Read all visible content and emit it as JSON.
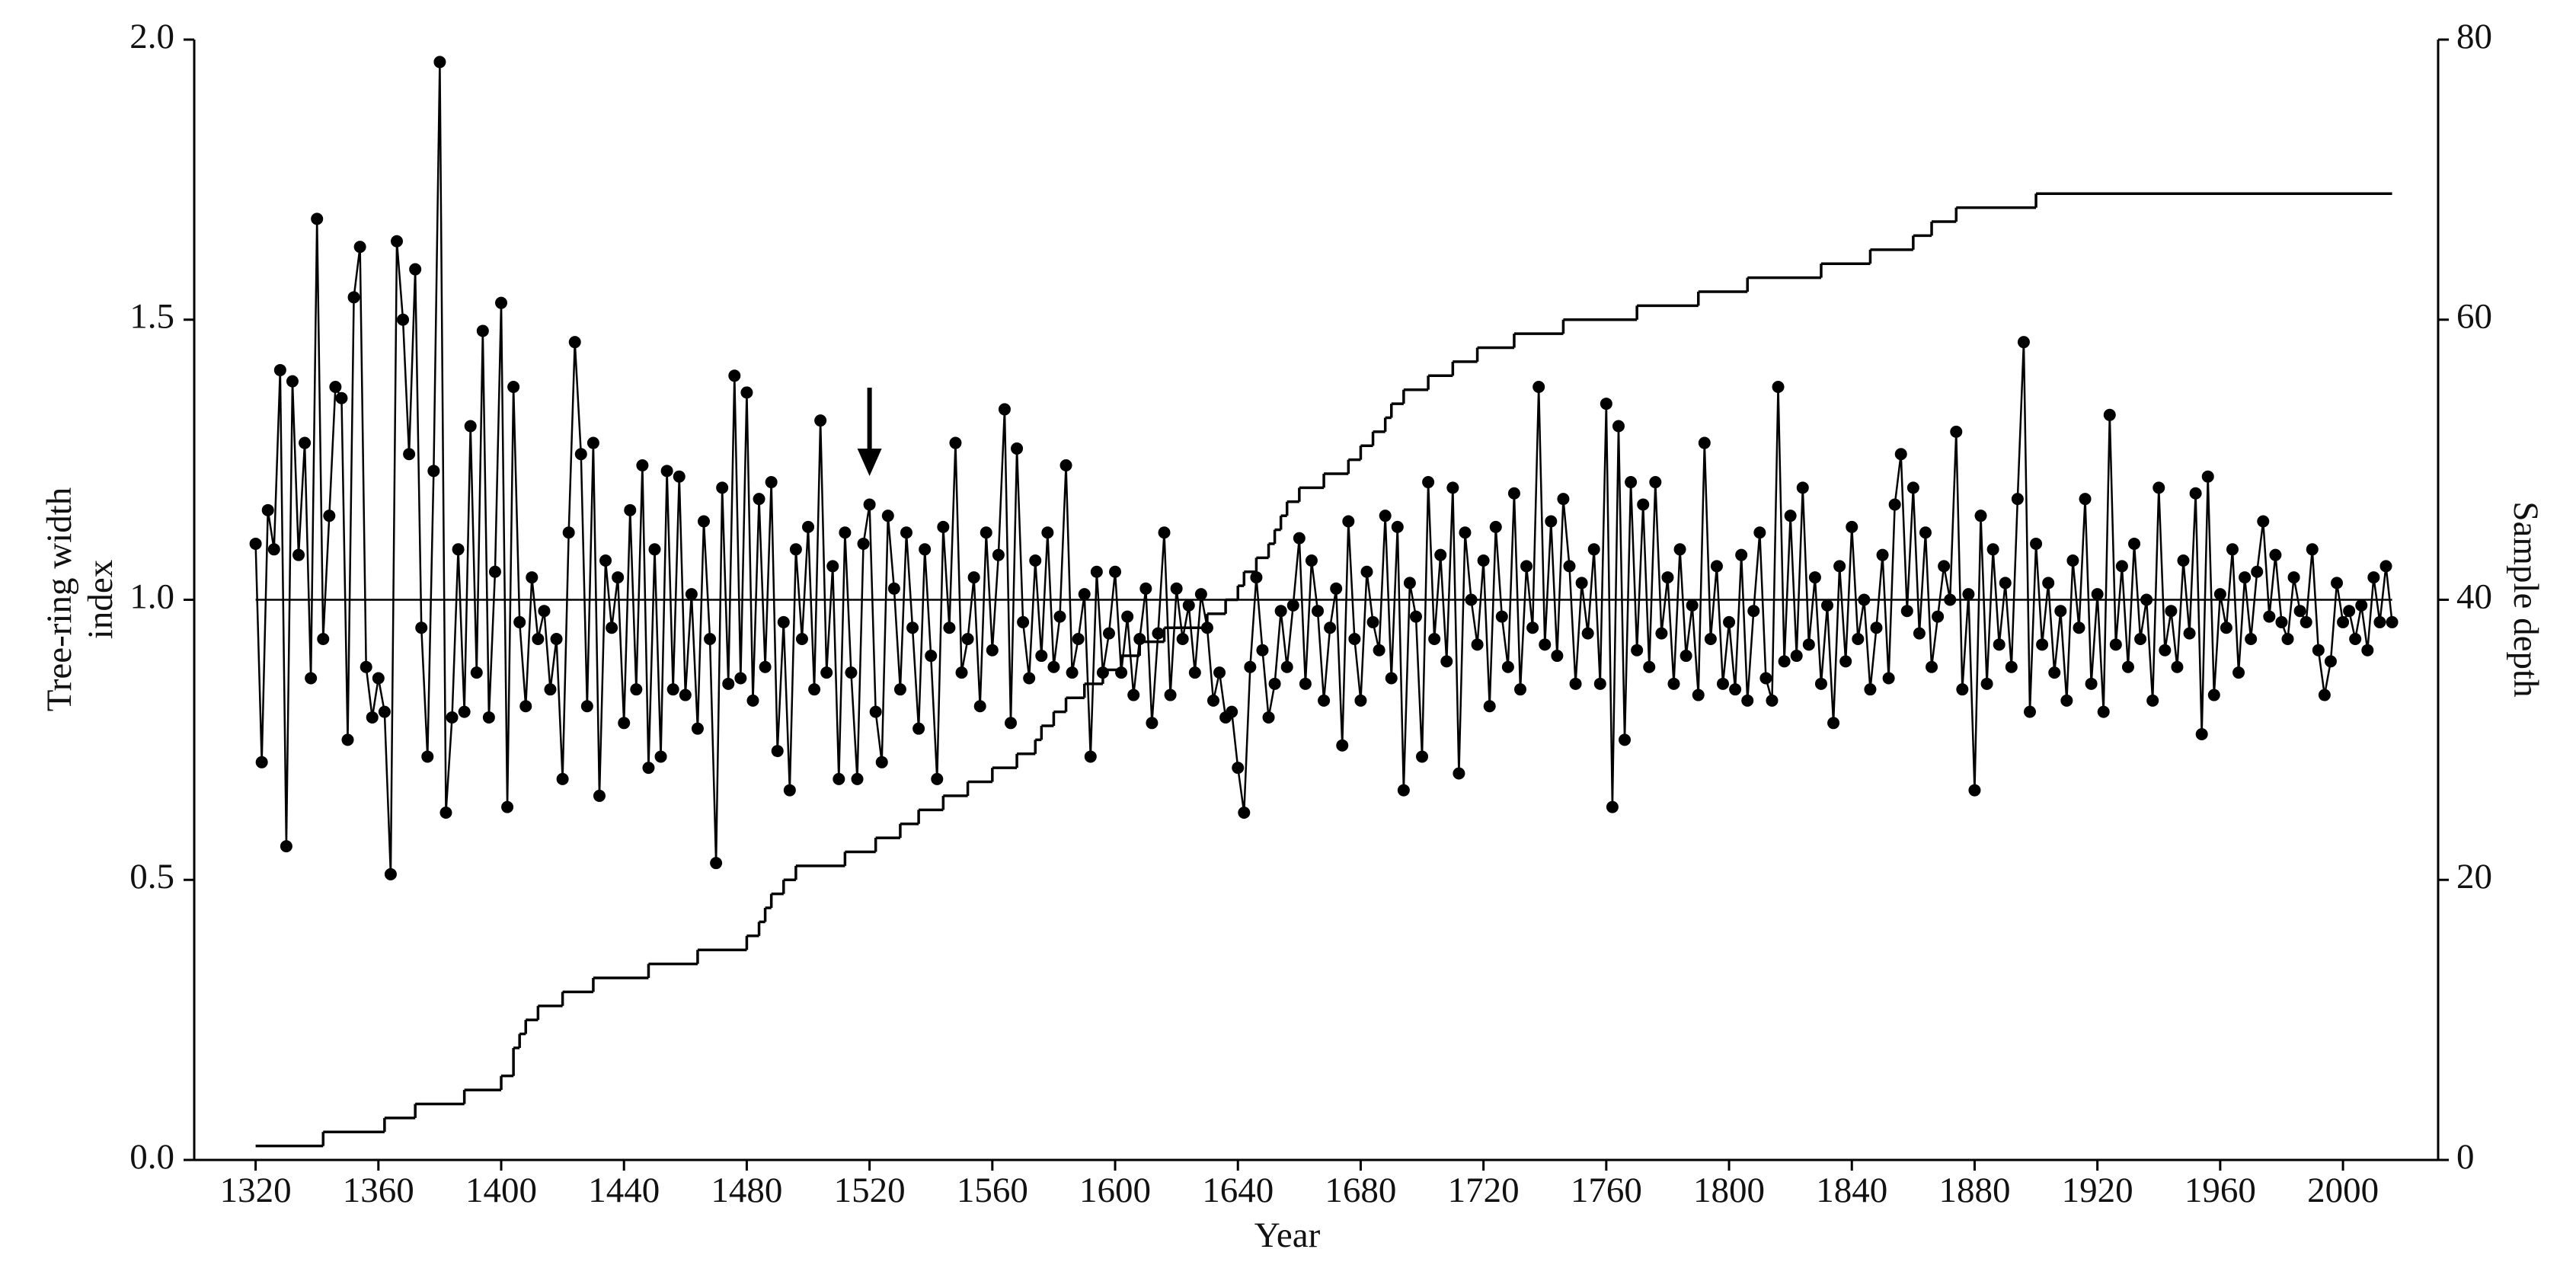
{
  "chart_data": {
    "type": "line",
    "xlabel": "Year",
    "ylabel": [
      "Tree-ring width",
      "index"
    ],
    "y2label": "Sample depth",
    "xlim": [
      1300,
      2031
    ],
    "xticks": [
      1320,
      1360,
      1400,
      1440,
      1480,
      1520,
      1560,
      1600,
      1640,
      1680,
      1720,
      1760,
      1800,
      1840,
      1880,
      1920,
      1960,
      2000
    ],
    "ylim": [
      0,
      2
    ],
    "yticks": [
      {
        "value": 0,
        "label": "0.0"
      },
      0.5,
      {
        "value": 1,
        "label": "1.0"
      },
      1.5,
      {
        "value": 2,
        "label": "2.0"
      }
    ],
    "y2lim": [
      0,
      80
    ],
    "y2ticks": [
      0,
      20,
      40,
      60,
      80
    ],
    "hline": 1,
    "arrows": [
      {
        "x": 1520
      }
    ],
    "series": [
      {
        "name": "Tree-ring width index",
        "color": "#000000",
        "marker": "circle",
        "x": [
          1320,
          1322,
          1324,
          1326,
          1328,
          1330,
          1332,
          1334,
          1336,
          1338,
          1340,
          1342,
          1344,
          1346,
          1348,
          1350,
          1352,
          1354,
          1356,
          1358,
          1360,
          1362,
          1364,
          1366,
          1368,
          1370,
          1372,
          1374,
          1376,
          1378,
          1380,
          1382,
          1384,
          1386,
          1388,
          1390,
          1392,
          1394,
          1396,
          1398,
          1400,
          1402,
          1404,
          1406,
          1408,
          1410,
          1412,
          1414,
          1416,
          1418,
          1420,
          1422,
          1424,
          1426,
          1428,
          1430,
          1432,
          1434,
          1436,
          1438,
          1440,
          1442,
          1444,
          1446,
          1448,
          1450,
          1452,
          1454,
          1456,
          1458,
          1460,
          1462,
          1464,
          1466,
          1468,
          1470,
          1472,
          1474,
          1476,
          1478,
          1480,
          1482,
          1484,
          1486,
          1488,
          1490,
          1492,
          1494,
          1496,
          1498,
          1500,
          1502,
          1504,
          1506,
          1508,
          1510,
          1512,
          1514,
          1516,
          1518,
          1520,
          1522,
          1524,
          1526,
          1528,
          1530,
          1532,
          1534,
          1536,
          1538,
          1540,
          1542,
          1544,
          1546,
          1548,
          1550,
          1552,
          1554,
          1556,
          1558,
          1560,
          1562,
          1564,
          1566,
          1568,
          1570,
          1572,
          1574,
          1576,
          1578,
          1580,
          1582,
          1584,
          1586,
          1588,
          1590,
          1592,
          1594,
          1596,
          1598,
          1600,
          1602,
          1604,
          1606,
          1608,
          1610,
          1612,
          1614,
          1616,
          1618,
          1620,
          1622,
          1624,
          1626,
          1628,
          1630,
          1632,
          1634,
          1636,
          1638,
          1640,
          1642,
          1644,
          1646,
          1648,
          1650,
          1652,
          1654,
          1656,
          1658,
          1660,
          1662,
          1664,
          1666,
          1668,
          1670,
          1672,
          1674,
          1676,
          1678,
          1680,
          1682,
          1684,
          1686,
          1688,
          1690,
          1692,
          1694,
          1696,
          1698,
          1700,
          1702,
          1704,
          1706,
          1708,
          1710,
          1712,
          1714,
          1716,
          1718,
          1720,
          1722,
          1724,
          1726,
          1728,
          1730,
          1732,
          1734,
          1736,
          1738,
          1740,
          1742,
          1744,
          1746,
          1748,
          1750,
          1752,
          1754,
          1756,
          1758,
          1760,
          1762,
          1764,
          1766,
          1768,
          1770,
          1772,
          1774,
          1776,
          1778,
          1780,
          1782,
          1784,
          1786,
          1788,
          1790,
          1792,
          1794,
          1796,
          1798,
          1800,
          1802,
          1804,
          1806,
          1808,
          1810,
          1812,
          1814,
          1816,
          1818,
          1820,
          1822,
          1824,
          1826,
          1828,
          1830,
          1832,
          1834,
          1836,
          1838,
          1840,
          1842,
          1844,
          1846,
          1848,
          1850,
          1852,
          1854,
          1856,
          1858,
          1860,
          1862,
          1864,
          1866,
          1868,
          1870,
          1872,
          1874,
          1876,
          1878,
          1880,
          1882,
          1884,
          1886,
          1888,
          1890,
          1892,
          1894,
          1896,
          1898,
          1900,
          1902,
          1904,
          1906,
          1908,
          1910,
          1912,
          1914,
          1916,
          1918,
          1920,
          1922,
          1924,
          1926,
          1928,
          1930,
          1932,
          1934,
          1936,
          1938,
          1940,
          1942,
          1944,
          1946,
          1948,
          1950,
          1952,
          1954,
          1956,
          1958,
          1960,
          1962,
          1964,
          1966,
          1968,
          1970,
          1972,
          1974,
          1976,
          1978,
          1980,
          1982,
          1984,
          1986,
          1988,
          1990,
          1992,
          1994,
          1996,
          1998,
          2000,
          2002,
          2004,
          2006,
          2008,
          2010,
          2012,
          2014,
          2016
        ],
        "values": [
          1.1,
          0.71,
          1.16,
          1.09,
          1.41,
          0.56,
          1.39,
          1.08,
          1.28,
          0.86,
          1.68,
          0.93,
          1.15,
          1.38,
          1.36,
          0.75,
          1.54,
          1.63,
          0.88,
          0.79,
          0.86,
          0.8,
          0.51,
          1.64,
          1.5,
          1.26,
          1.59,
          0.95,
          0.72,
          1.23,
          1.96,
          0.62,
          0.79,
          1.09,
          0.8,
          1.31,
          0.87,
          1.48,
          0.79,
          1.05,
          1.53,
          0.63,
          1.38,
          0.96,
          0.81,
          1.04,
          0.93,
          0.98,
          0.84,
          0.93,
          0.68,
          1.12,
          1.46,
          1.26,
          0.81,
          1.28,
          0.65,
          1.07,
          0.95,
          1.04,
          0.78,
          1.16,
          0.84,
          1.24,
          0.7,
          1.09,
          0.72,
          1.23,
          0.84,
          1.22,
          0.83,
          1.01,
          0.77,
          1.14,
          0.93,
          0.53,
          1.2,
          0.85,
          1.4,
          0.86,
          1.37,
          0.82,
          1.18,
          0.88,
          1.21,
          0.73,
          0.96,
          0.66,
          1.09,
          0.93,
          1.13,
          0.84,
          1.32,
          0.87,
          1.06,
          0.68,
          1.12,
          0.87,
          0.68,
          1.1,
          1.17,
          0.8,
          0.71,
          1.15,
          1.02,
          0.84,
          1.12,
          0.95,
          0.77,
          1.09,
          0.9,
          0.68,
          1.13,
          0.95,
          1.28,
          0.87,
          0.93,
          1.04,
          0.81,
          1.12,
          0.91,
          1.08,
          1.34,
          0.78,
          1.27,
          0.96,
          0.86,
          1.07,
          0.9,
          1.12,
          0.88,
          0.97,
          1.24,
          0.87,
          0.93,
          1.01,
          0.72,
          1.05,
          0.87,
          0.94,
          1.05,
          0.87,
          0.97,
          0.83,
          0.93,
          1.02,
          0.78,
          0.94,
          1.12,
          0.83,
          1.02,
          0.93,
          0.99,
          0.87,
          1.01,
          0.95,
          0.82,
          0.87,
          0.79,
          0.8,
          0.7,
          0.62,
          0.88,
          1.04,
          0.91,
          0.79,
          0.85,
          0.98,
          0.88,
          0.99,
          1.11,
          0.85,
          1.07,
          0.98,
          0.82,
          0.95,
          1.02,
          0.74,
          1.14,
          0.93,
          0.82,
          1.05,
          0.96,
          0.91,
          1.15,
          0.86,
          1.13,
          0.66,
          1.03,
          0.97,
          0.72,
          1.21,
          0.93,
          1.08,
          0.89,
          1.2,
          0.69,
          1.12,
          1.0,
          0.92,
          1.07,
          0.81,
          1.13,
          0.97,
          0.88,
          1.19,
          0.84,
          1.06,
          0.95,
          1.38,
          0.92,
          1.14,
          0.9,
          1.18,
          1.06,
          0.85,
          1.03,
          0.94,
          1.09,
          0.85,
          1.35,
          0.63,
          1.31,
          0.75,
          1.21,
          0.91,
          1.17,
          0.88,
          1.21,
          0.94,
          1.04,
          0.85,
          1.09,
          0.9,
          0.99,
          0.83,
          1.28,
          0.93,
          1.06,
          0.85,
          0.96,
          0.84,
          1.08,
          0.82,
          0.98,
          1.12,
          0.86,
          0.82,
          1.38,
          0.89,
          1.15,
          0.9,
          1.2,
          0.92,
          1.04,
          0.85,
          0.99,
          0.78,
          1.06,
          0.89,
          1.13,
          0.93,
          1.0,
          0.84,
          0.95,
          1.08,
          0.86,
          1.17,
          1.26,
          0.98,
          1.2,
          0.94,
          1.12,
          0.88,
          0.97,
          1.06,
          1.0,
          1.3,
          0.84,
          1.01,
          0.66,
          1.15,
          0.85,
          1.09,
          0.92,
          1.03,
          0.88,
          1.18,
          1.46,
          0.8,
          1.1,
          0.92,
          1.03,
          0.87,
          0.98,
          0.82,
          1.07,
          0.95,
          1.18,
          0.85,
          1.01,
          0.8,
          1.33,
          0.92,
          1.06,
          0.88,
          1.1,
          0.93,
          1.0,
          0.82,
          1.2,
          0.91,
          0.98,
          0.88,
          1.07,
          0.94,
          1.19,
          0.76,
          1.22,
          0.83,
          1.01,
          0.95,
          1.09,
          0.87,
          1.04,
          0.93,
          1.05,
          1.14,
          0.97,
          1.08,
          0.96,
          0.93,
          1.04,
          0.98,
          0.96,
          1.09,
          0.91,
          0.83,
          0.89,
          1.03,
          0.96,
          0.98,
          0.93,
          0.99,
          0.91,
          1.04,
          0.96,
          1.06,
          0.96
        ]
      },
      {
        "name": "Sample depth",
        "color": "#000000",
        "axis": "y2",
        "step": true,
        "x": [
          1320,
          1342,
          1362,
          1372,
          1388,
          1400,
          1404,
          1406,
          1408,
          1412,
          1420,
          1430,
          1448,
          1464,
          1480,
          1484,
          1486,
          1488,
          1492,
          1496,
          1512,
          1522,
          1530,
          1536,
          1544,
          1552,
          1560,
          1568,
          1574,
          1576,
          1580,
          1584,
          1590,
          1596,
          1602,
          1608,
          1616,
          1630,
          1636,
          1640,
          1642,
          1646,
          1650,
          1652,
          1654,
          1656,
          1660,
          1668,
          1676,
          1680,
          1684,
          1688,
          1690,
          1694,
          1702,
          1710,
          1718,
          1730,
          1746,
          1770,
          1790,
          1806,
          1830,
          1846,
          1860,
          1866,
          1874,
          1900,
          2016
        ],
        "values": [
          1,
          2,
          3,
          4,
          5,
          6,
          8,
          9,
          10,
          11,
          12,
          13,
          14,
          15,
          16,
          17,
          18,
          19,
          20,
          21,
          22,
          23,
          24,
          25,
          26,
          27,
          28,
          29,
          30,
          31,
          32,
          33,
          34,
          35,
          36,
          37,
          38,
          39,
          40,
          41,
          42,
          43,
          44,
          45,
          46,
          47,
          48,
          49,
          50,
          51,
          52,
          53,
          54,
          55,
          56,
          57,
          58,
          59,
          60,
          61,
          62,
          63,
          64,
          65,
          66,
          67,
          68,
          69,
          69
        ]
      }
    ]
  }
}
